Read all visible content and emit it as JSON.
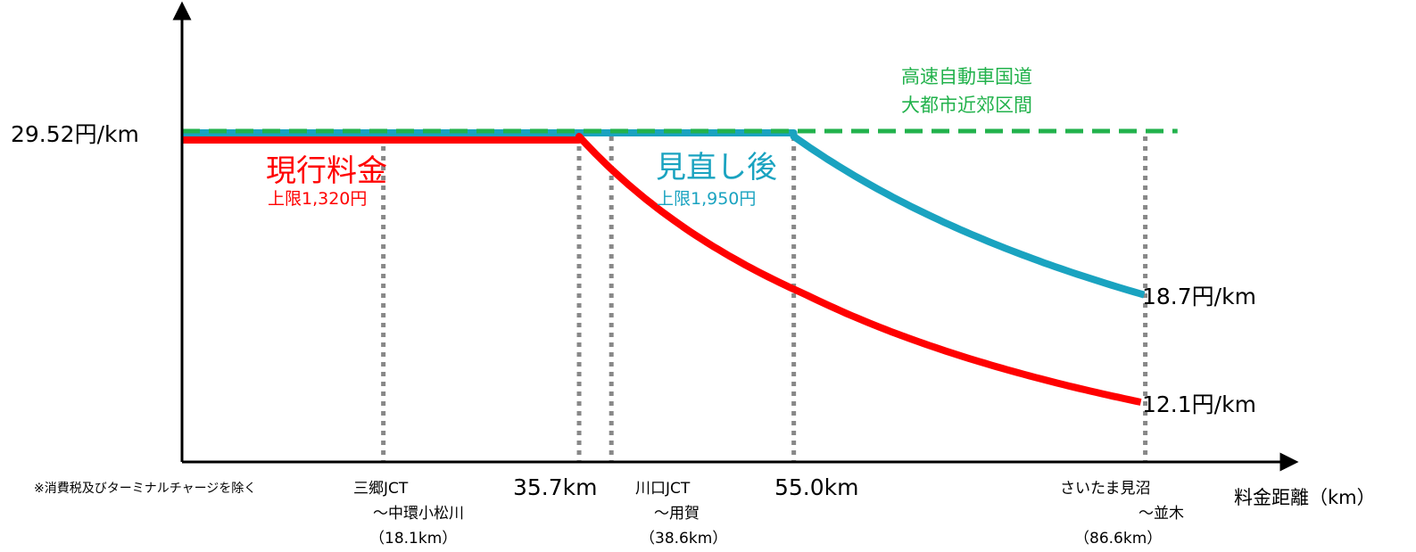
{
  "chart_data": {
    "type": "line",
    "title": "",
    "xlabel": "料金距離（km）",
    "ylabel": "",
    "note": "※消費税及びターミナルチャージを除く",
    "xlim": [
      0,
      93
    ],
    "x_ticks": [
      {
        "value": 35.7,
        "label": "35.7km"
      },
      {
        "value": 55.0,
        "label": "55.0km"
      }
    ],
    "y_ticks": [
      {
        "value": 29.52,
        "label": "29.52円/km"
      }
    ],
    "series": [
      {
        "name": "現行料金",
        "sublabel": "上限1,320円",
        "color": "#ff0000",
        "cap_km": 35.7,
        "base_rate": 29.52,
        "end_km": 86.6,
        "end_rate": 12.1,
        "end_label": "12.1円/km"
      },
      {
        "name": "見直し後",
        "sublabel": "上限1,950円",
        "color": "#1aa3c0",
        "cap_km": 55.0,
        "base_rate": 29.52,
        "end_km": 86.6,
        "end_rate": 18.7,
        "end_label": "18.7円/km"
      },
      {
        "name": "高速自動車国道\n大都市近郊区間",
        "name_lines": [
          "高速自動車国道",
          "大都市近郊区間"
        ],
        "color": "#22b24c",
        "dashed": true,
        "base_rate": 29.52
      }
    ],
    "markers": [
      {
        "km": 18.1,
        "labels": [
          "三郷JCT",
          "～中環小松川",
          "（18.1km）"
        ]
      },
      {
        "km": 35.7,
        "labels": []
      },
      {
        "km": 38.6,
        "labels": [
          "川口JCT",
          "～用賀",
          "（38.6km）"
        ]
      },
      {
        "km": 55.0,
        "labels": []
      },
      {
        "km": 86.6,
        "labels": [
          "さいたま見沼",
          "～並木",
          "（86.6km）"
        ]
      }
    ]
  }
}
